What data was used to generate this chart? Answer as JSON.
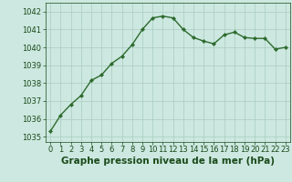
{
  "x": [
    0,
    1,
    2,
    3,
    4,
    5,
    6,
    7,
    8,
    9,
    10,
    11,
    12,
    13,
    14,
    15,
    16,
    17,
    18,
    19,
    20,
    21,
    22,
    23
  ],
  "y": [
    1035.3,
    1036.2,
    1036.8,
    1037.3,
    1038.15,
    1038.45,
    1039.1,
    1039.5,
    1040.15,
    1041.0,
    1041.65,
    1041.75,
    1041.65,
    1041.0,
    1040.55,
    1040.35,
    1040.2,
    1040.7,
    1040.85,
    1040.55,
    1040.5,
    1040.5,
    1039.9,
    1040.0
  ],
  "line_color": "#2d6a2d",
  "marker": "D",
  "marker_size": 2.2,
  "line_width": 1.0,
  "bg_color": "#cce8e0",
  "grid_color": "#aaccc0",
  "xlabel": "Graphe pression niveau de la mer (hPa)",
  "xlabel_fontsize": 7.5,
  "label_color": "#1a4a1a",
  "tick_fontsize": 6.0,
  "ylim": [
    1034.7,
    1042.5
  ],
  "yticks": [
    1035,
    1036,
    1037,
    1038,
    1039,
    1040,
    1041,
    1042
  ],
  "xlim": [
    -0.5,
    23.5
  ],
  "xticks": [
    0,
    1,
    2,
    3,
    4,
    5,
    6,
    7,
    8,
    9,
    10,
    11,
    12,
    13,
    14,
    15,
    16,
    17,
    18,
    19,
    20,
    21,
    22,
    23
  ]
}
